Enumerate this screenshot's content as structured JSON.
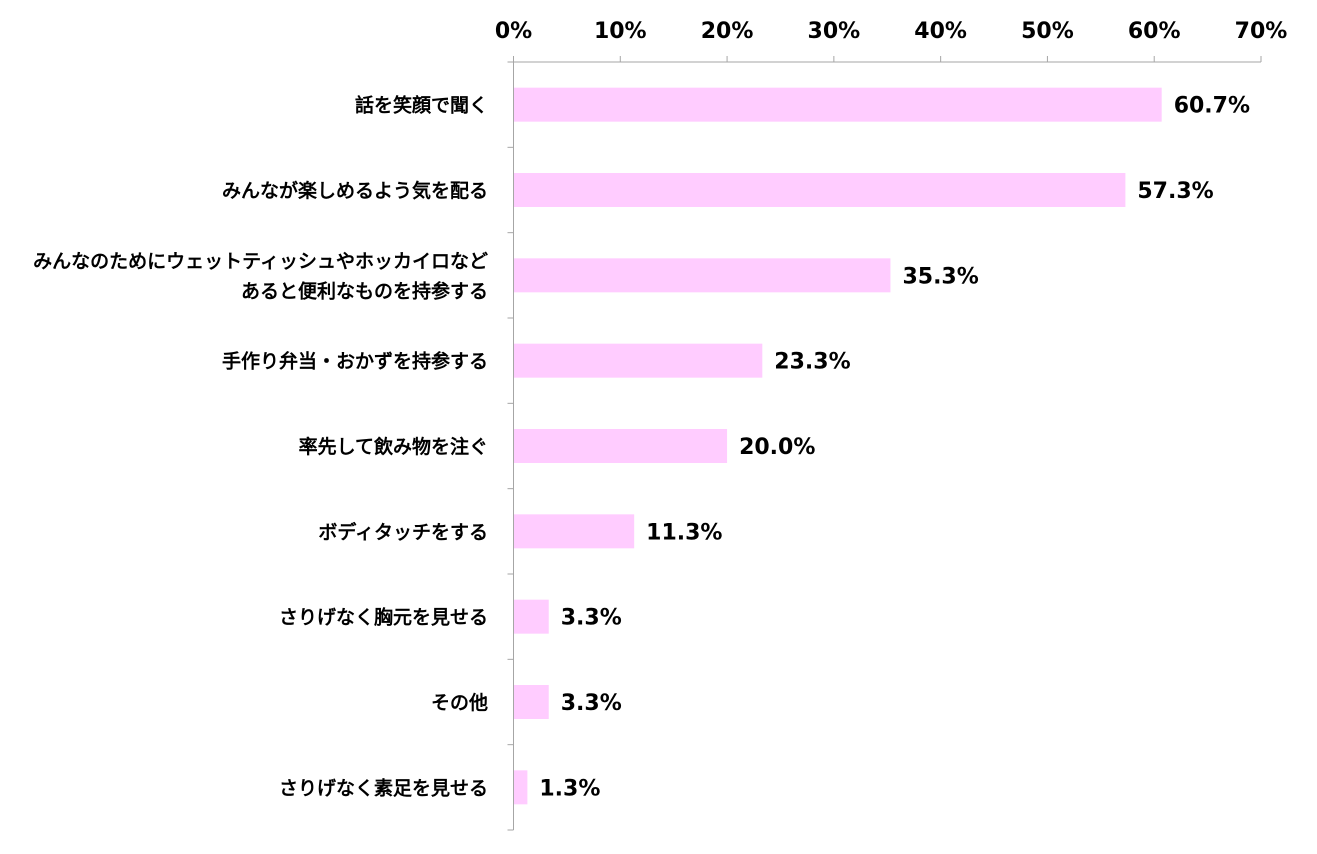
{
  "chart_data": {
    "type": "bar",
    "orientation": "horizontal",
    "title": "",
    "xlabel": "",
    "ylabel": "",
    "xlim": [
      0,
      70
    ],
    "x_ticks": [
      0,
      10,
      20,
      30,
      40,
      50,
      60,
      70
    ],
    "x_tick_labels": [
      "0%",
      "10%",
      "20%",
      "30%",
      "40%",
      "50%",
      "60%",
      "70%"
    ],
    "x_axis_position": "top",
    "grid": false,
    "legend": "none",
    "bar_color": "#FFCCFF",
    "categories": [
      [
        "話を笑顔で聞く"
      ],
      [
        "みんなが楽しめるよう気を配る"
      ],
      [
        "みんなのためにウェットティッシュやホッカイロなど",
        "あると便利なものを持参する"
      ],
      [
        "手作り弁当・おかずを持参する"
      ],
      [
        "率先して飲み物を注ぐ"
      ],
      [
        "ボディタッチをする"
      ],
      [
        "さりげなく胸元を見せる"
      ],
      [
        "その他"
      ],
      [
        "さりげなく素足を見せる"
      ]
    ],
    "values": [
      60.7,
      57.3,
      35.3,
      23.3,
      20.0,
      11.3,
      3.3,
      3.3,
      1.3
    ],
    "value_labels": [
      "60.7%",
      "57.3%",
      "35.3%",
      "23.3%",
      "20.0%",
      "11.3%",
      "3.3%",
      "3.3%",
      "1.3%"
    ]
  }
}
